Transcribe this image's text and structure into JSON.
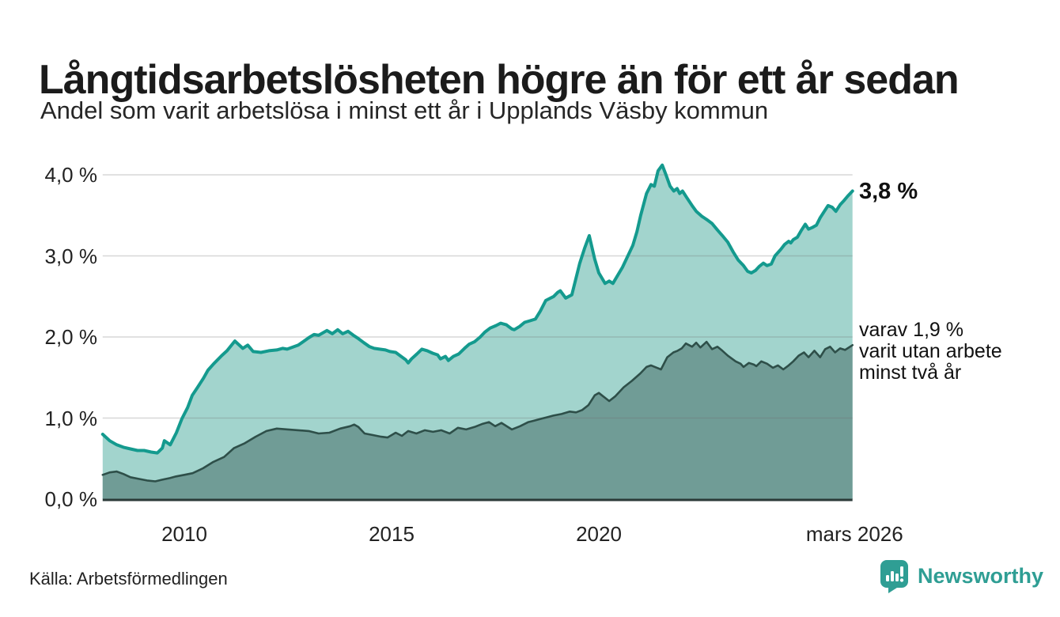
{
  "header": {
    "title": "Långtidsarbetslösheten högre än för ett år sedan",
    "subtitle": "Andel som varit arbetslösa i minst ett år i Upplands Väsby kommun"
  },
  "annotations": {
    "latest_total": "3,8 %",
    "secondary_line1": "varav 1,9 %",
    "secondary_line2": "varit utan arbete",
    "secondary_line3": "minst två år"
  },
  "footer": {
    "source": "Källa: Arbetsförmedlingen",
    "brand_name": "Newsworthy",
    "brand_icon": "newsworthy-chart-bubble-icon"
  },
  "colors": {
    "series1_line": "#149a8e",
    "series1_fill": "#a2d4cd",
    "series2_line": "#2e4f49",
    "series2_fill": "#709c96",
    "grid": "#6e6e6e",
    "axis": "#2b3a38",
    "brand_teal": "#2f9e94",
    "text": "#1b1b1b"
  },
  "chart_data": {
    "type": "area",
    "title": "Långtidsarbetslösheten högre än för ett år sedan",
    "subtitle": "Andel som varit arbetslösa i minst ett år i Upplands Väsby kommun",
    "grid": true,
    "legend_position": "right-annotations",
    "x_axis": {
      "range": [
        2008.03,
        2026.21
      ],
      "ticks": [
        {
          "label": "2010",
          "year": 2010
        },
        {
          "label": "2015",
          "year": 2015
        },
        {
          "label": "2020",
          "year": 2020
        },
        {
          "label": "mars 2026",
          "year": 2026.17
        }
      ]
    },
    "y_axis": {
      "range": [
        0,
        4.35
      ],
      "unit": "%",
      "ticks": [
        {
          "label": "4,0 %",
          "value": 4
        },
        {
          "label": "3,0 %",
          "value": 3
        },
        {
          "label": "2,0 %",
          "value": 2
        },
        {
          "label": "1,0 %",
          "value": 1
        },
        {
          "label": "0,0 %",
          "value": 0
        }
      ]
    },
    "series": [
      {
        "name": "Andel arbetslösa minst ett år",
        "end_label": "3,8 %",
        "end_value": 3.8,
        "line_color": "#149a8e",
        "fill_color": "#a2d4cd",
        "values": [
          [
            2008.03,
            0.8
          ],
          [
            2008.2,
            0.72
          ],
          [
            2008.37,
            0.67
          ],
          [
            2008.53,
            0.64
          ],
          [
            2008.7,
            0.62
          ],
          [
            2008.87,
            0.6
          ],
          [
            2009.03,
            0.6
          ],
          [
            2009.2,
            0.58
          ],
          [
            2009.35,
            0.57
          ],
          [
            2009.47,
            0.63
          ],
          [
            2009.52,
            0.72
          ],
          [
            2009.66,
            0.67
          ],
          [
            2009.81,
            0.82
          ],
          [
            2009.94,
            0.99
          ],
          [
            2010.08,
            1.13
          ],
          [
            2010.19,
            1.28
          ],
          [
            2010.32,
            1.38
          ],
          [
            2010.46,
            1.49
          ],
          [
            2010.57,
            1.59
          ],
          [
            2010.71,
            1.67
          ],
          [
            2010.9,
            1.77
          ],
          [
            2011.03,
            1.83
          ],
          [
            2011.22,
            1.95
          ],
          [
            2011.41,
            1.86
          ],
          [
            2011.53,
            1.9
          ],
          [
            2011.66,
            1.82
          ],
          [
            2011.85,
            1.81
          ],
          [
            2012.04,
            1.83
          ],
          [
            2012.23,
            1.84
          ],
          [
            2012.37,
            1.86
          ],
          [
            2012.48,
            1.85
          ],
          [
            2012.75,
            1.9
          ],
          [
            2013.0,
            1.99
          ],
          [
            2013.13,
            2.03
          ],
          [
            2013.24,
            2.02
          ],
          [
            2013.44,
            2.08
          ],
          [
            2013.57,
            2.04
          ],
          [
            2013.7,
            2.09
          ],
          [
            2013.82,
            2.04
          ],
          [
            2013.95,
            2.07
          ],
          [
            2014.08,
            2.02
          ],
          [
            2014.2,
            1.98
          ],
          [
            2014.33,
            1.93
          ],
          [
            2014.47,
            1.88
          ],
          [
            2014.58,
            1.86
          ],
          [
            2014.71,
            1.85
          ],
          [
            2014.85,
            1.84
          ],
          [
            2014.96,
            1.82
          ],
          [
            2015.1,
            1.81
          ],
          [
            2015.23,
            1.76
          ],
          [
            2015.34,
            1.72
          ],
          [
            2015.4,
            1.68
          ],
          [
            2015.48,
            1.73
          ],
          [
            2015.61,
            1.79
          ],
          [
            2015.73,
            1.85
          ],
          [
            2015.86,
            1.83
          ],
          [
            2015.99,
            1.8
          ],
          [
            2016.11,
            1.78
          ],
          [
            2016.18,
            1.73
          ],
          [
            2016.3,
            1.76
          ],
          [
            2016.37,
            1.71
          ],
          [
            2016.49,
            1.76
          ],
          [
            2016.62,
            1.79
          ],
          [
            2016.76,
            1.86
          ],
          [
            2016.87,
            1.91
          ],
          [
            2017.0,
            1.94
          ],
          [
            2017.14,
            2.0
          ],
          [
            2017.25,
            2.06
          ],
          [
            2017.38,
            2.11
          ],
          [
            2017.52,
            2.14
          ],
          [
            2017.63,
            2.17
          ],
          [
            2017.77,
            2.15
          ],
          [
            2017.9,
            2.1
          ],
          [
            2017.96,
            2.09
          ],
          [
            2018.09,
            2.13
          ],
          [
            2018.21,
            2.18
          ],
          [
            2018.34,
            2.2
          ],
          [
            2018.47,
            2.22
          ],
          [
            2018.59,
            2.32
          ],
          [
            2018.72,
            2.45
          ],
          [
            2018.91,
            2.5
          ],
          [
            2019.01,
            2.55
          ],
          [
            2019.07,
            2.57
          ],
          [
            2019.2,
            2.48
          ],
          [
            2019.35,
            2.52
          ],
          [
            2019.54,
            2.91
          ],
          [
            2019.66,
            3.1
          ],
          [
            2019.77,
            3.25
          ],
          [
            2019.9,
            2.96
          ],
          [
            2020.0,
            2.79
          ],
          [
            2020.15,
            2.66
          ],
          [
            2020.25,
            2.69
          ],
          [
            2020.34,
            2.66
          ],
          [
            2020.57,
            2.86
          ],
          [
            2020.82,
            3.13
          ],
          [
            2020.92,
            3.3
          ],
          [
            2021.01,
            3.5
          ],
          [
            2021.15,
            3.77
          ],
          [
            2021.26,
            3.88
          ],
          [
            2021.34,
            3.86
          ],
          [
            2021.43,
            4.05
          ],
          [
            2021.53,
            4.12
          ],
          [
            2021.62,
            4.0
          ],
          [
            2021.72,
            3.86
          ],
          [
            2021.81,
            3.8
          ],
          [
            2021.89,
            3.83
          ],
          [
            2021.95,
            3.77
          ],
          [
            2022.02,
            3.8
          ],
          [
            2022.12,
            3.72
          ],
          [
            2022.25,
            3.62
          ],
          [
            2022.35,
            3.55
          ],
          [
            2022.48,
            3.49
          ],
          [
            2022.6,
            3.45
          ],
          [
            2022.73,
            3.4
          ],
          [
            2022.86,
            3.32
          ],
          [
            2022.98,
            3.25
          ],
          [
            2023.11,
            3.17
          ],
          [
            2023.24,
            3.05
          ],
          [
            2023.36,
            2.95
          ],
          [
            2023.49,
            2.88
          ],
          [
            2023.59,
            2.81
          ],
          [
            2023.68,
            2.79
          ],
          [
            2023.78,
            2.82
          ],
          [
            2023.87,
            2.87
          ],
          [
            2023.97,
            2.91
          ],
          [
            2024.06,
            2.88
          ],
          [
            2024.16,
            2.9
          ],
          [
            2024.25,
            3.0
          ],
          [
            2024.39,
            3.08
          ],
          [
            2024.48,
            3.14
          ],
          [
            2024.58,
            3.18
          ],
          [
            2024.63,
            3.16
          ],
          [
            2024.69,
            3.2
          ],
          [
            2024.79,
            3.23
          ],
          [
            2024.88,
            3.31
          ],
          [
            2024.98,
            3.39
          ],
          [
            2025.06,
            3.33
          ],
          [
            2025.15,
            3.35
          ],
          [
            2025.25,
            3.38
          ],
          [
            2025.34,
            3.47
          ],
          [
            2025.44,
            3.55
          ],
          [
            2025.53,
            3.62
          ],
          [
            2025.63,
            3.6
          ],
          [
            2025.72,
            3.55
          ],
          [
            2025.82,
            3.63
          ],
          [
            2025.91,
            3.68
          ],
          [
            2026.01,
            3.74
          ],
          [
            2026.12,
            3.8
          ]
        ]
      },
      {
        "name": "varav utan arbete minst två år",
        "end_label": "varav 1,9 % varit utan arbete minst två år",
        "end_value": 1.9,
        "line_color": "#2e4f49",
        "fill_color": "#709c96",
        "values": [
          [
            2008.03,
            0.3
          ],
          [
            2008.2,
            0.33
          ],
          [
            2008.37,
            0.34
          ],
          [
            2008.53,
            0.31
          ],
          [
            2008.7,
            0.27
          ],
          [
            2008.9,
            0.25
          ],
          [
            2009.1,
            0.23
          ],
          [
            2009.3,
            0.22
          ],
          [
            2009.47,
            0.24
          ],
          [
            2009.65,
            0.26
          ],
          [
            2009.8,
            0.28
          ],
          [
            2010.0,
            0.3
          ],
          [
            2010.2,
            0.32
          ],
          [
            2010.45,
            0.38
          ],
          [
            2010.7,
            0.46
          ],
          [
            2010.96,
            0.52
          ],
          [
            2011.2,
            0.63
          ],
          [
            2011.46,
            0.69
          ],
          [
            2011.72,
            0.77
          ],
          [
            2011.98,
            0.84
          ],
          [
            2012.23,
            0.87
          ],
          [
            2012.5,
            0.86
          ],
          [
            2012.75,
            0.85
          ],
          [
            2013.0,
            0.84
          ],
          [
            2013.24,
            0.81
          ],
          [
            2013.5,
            0.82
          ],
          [
            2013.76,
            0.87
          ],
          [
            2014.0,
            0.9
          ],
          [
            2014.1,
            0.92
          ],
          [
            2014.2,
            0.89
          ],
          [
            2014.35,
            0.81
          ],
          [
            2014.55,
            0.79
          ],
          [
            2014.75,
            0.77
          ],
          [
            2014.9,
            0.76
          ],
          [
            2015.1,
            0.82
          ],
          [
            2015.25,
            0.78
          ],
          [
            2015.4,
            0.84
          ],
          [
            2015.6,
            0.81
          ],
          [
            2015.8,
            0.85
          ],
          [
            2016.0,
            0.83
          ],
          [
            2016.2,
            0.85
          ],
          [
            2016.4,
            0.81
          ],
          [
            2016.6,
            0.88
          ],
          [
            2016.8,
            0.86
          ],
          [
            2017.0,
            0.89
          ],
          [
            2017.2,
            0.93
          ],
          [
            2017.35,
            0.95
          ],
          [
            2017.5,
            0.9
          ],
          [
            2017.65,
            0.94
          ],
          [
            2017.9,
            0.86
          ],
          [
            2018.1,
            0.9
          ],
          [
            2018.3,
            0.95
          ],
          [
            2018.45,
            0.97
          ],
          [
            2018.6,
            0.99
          ],
          [
            2018.75,
            1.01
          ],
          [
            2018.9,
            1.03
          ],
          [
            2019.1,
            1.05
          ],
          [
            2019.3,
            1.08
          ],
          [
            2019.45,
            1.07
          ],
          [
            2019.6,
            1.1
          ],
          [
            2019.75,
            1.16
          ],
          [
            2019.9,
            1.28
          ],
          [
            2020.0,
            1.31
          ],
          [
            2020.1,
            1.27
          ],
          [
            2020.25,
            1.21
          ],
          [
            2020.4,
            1.27
          ],
          [
            2020.6,
            1.38
          ],
          [
            2020.8,
            1.46
          ],
          [
            2021.0,
            1.55
          ],
          [
            2021.15,
            1.63
          ],
          [
            2021.26,
            1.65
          ],
          [
            2021.4,
            1.62
          ],
          [
            2021.5,
            1.6
          ],
          [
            2021.65,
            1.75
          ],
          [
            2021.8,
            1.81
          ],
          [
            2021.9,
            1.83
          ],
          [
            2022.0,
            1.86
          ],
          [
            2022.1,
            1.92
          ],
          [
            2022.25,
            1.88
          ],
          [
            2022.35,
            1.93
          ],
          [
            2022.45,
            1.87
          ],
          [
            2022.6,
            1.94
          ],
          [
            2022.73,
            1.85
          ],
          [
            2022.86,
            1.88
          ],
          [
            2022.98,
            1.83
          ],
          [
            2023.11,
            1.77
          ],
          [
            2023.3,
            1.7
          ],
          [
            2023.42,
            1.67
          ],
          [
            2023.49,
            1.63
          ],
          [
            2023.62,
            1.68
          ],
          [
            2023.74,
            1.66
          ],
          [
            2023.8,
            1.64
          ],
          [
            2023.92,
            1.7
          ],
          [
            2024.06,
            1.67
          ],
          [
            2024.2,
            1.62
          ],
          [
            2024.32,
            1.65
          ],
          [
            2024.45,
            1.6
          ],
          [
            2024.58,
            1.65
          ],
          [
            2024.69,
            1.7
          ],
          [
            2024.82,
            1.77
          ],
          [
            2024.95,
            1.81
          ],
          [
            2025.06,
            1.75
          ],
          [
            2025.2,
            1.83
          ],
          [
            2025.34,
            1.75
          ],
          [
            2025.46,
            1.85
          ],
          [
            2025.58,
            1.88
          ],
          [
            2025.7,
            1.81
          ],
          [
            2025.82,
            1.86
          ],
          [
            2025.94,
            1.84
          ],
          [
            2026.12,
            1.9
          ]
        ]
      }
    ]
  }
}
